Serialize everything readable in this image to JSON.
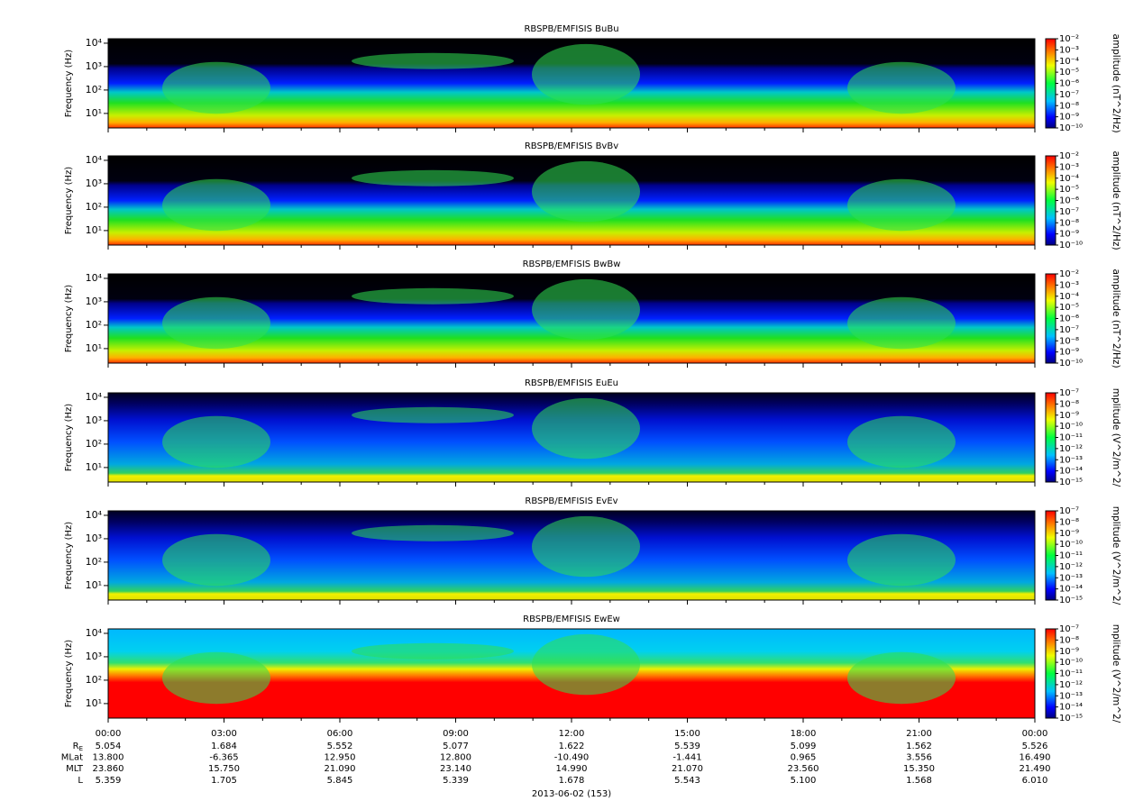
{
  "chart_data": [
    {
      "type": "heatmap",
      "title": "RBSPB/EMFISIS  BuBu",
      "ylabel": "Frequency (Hz)",
      "yscale": "log",
      "ylim": [
        2.4,
        15500
      ],
      "yticks": [
        {
          "value": 10,
          "label": "10¹"
        },
        {
          "value": 100,
          "label": "10²"
        },
        {
          "value": 1000,
          "label": "10³"
        },
        {
          "value": 10000,
          "label": "10⁴"
        }
      ],
      "colorbar": {
        "label": "amplitude (nT^2/Hz)",
        "scale": "log",
        "lim": [
          1e-10,
          0.01
        ],
        "ticks": [
          {
            "value": 0.01,
            "label": "10⁻²"
          },
          {
            "value": 0.001,
            "label": "10⁻³"
          },
          {
            "value": 0.0001,
            "label": "10⁻⁴"
          },
          {
            "value": 1e-05,
            "label": "10⁻⁵"
          },
          {
            "value": 1e-06,
            "label": "10⁻⁶"
          },
          {
            "value": 1e-07,
            "label": "10⁻⁷"
          },
          {
            "value": 1e-08,
            "label": "10⁻⁸"
          },
          {
            "value": 1e-09,
            "label": "10⁻⁹"
          },
          {
            "value": 1e-10,
            "label": "10⁻¹⁰"
          }
        ]
      }
    },
    {
      "type": "heatmap",
      "title": "RBSPB/EMFISIS  BvBv",
      "ylabel": "Frequency (Hz)",
      "yscale": "log",
      "ylim": [
        2.4,
        15500
      ],
      "yticks": [
        {
          "value": 10,
          "label": "10¹"
        },
        {
          "value": 100,
          "label": "10²"
        },
        {
          "value": 1000,
          "label": "10³"
        },
        {
          "value": 10000,
          "label": "10⁴"
        }
      ],
      "colorbar": {
        "label": "amplitude (nT^2/Hz)",
        "scale": "log",
        "lim": [
          1e-10,
          0.01
        ],
        "ticks": [
          {
            "value": 0.01,
            "label": "10⁻²"
          },
          {
            "value": 0.001,
            "label": "10⁻³"
          },
          {
            "value": 0.0001,
            "label": "10⁻⁴"
          },
          {
            "value": 1e-05,
            "label": "10⁻⁵"
          },
          {
            "value": 1e-06,
            "label": "10⁻⁶"
          },
          {
            "value": 1e-07,
            "label": "10⁻⁷"
          },
          {
            "value": 1e-08,
            "label": "10⁻⁸"
          },
          {
            "value": 1e-09,
            "label": "10⁻⁹"
          },
          {
            "value": 1e-10,
            "label": "10⁻¹⁰"
          }
        ]
      }
    },
    {
      "type": "heatmap",
      "title": "RBSPB/EMFISIS  BwBw",
      "ylabel": "Frequency (Hz)",
      "yscale": "log",
      "ylim": [
        2.4,
        15500
      ],
      "yticks": [
        {
          "value": 10,
          "label": "10¹"
        },
        {
          "value": 100,
          "label": "10²"
        },
        {
          "value": 1000,
          "label": "10³"
        },
        {
          "value": 10000,
          "label": "10⁴"
        }
      ],
      "colorbar": {
        "label": "amplitude (nT^2/Hz)",
        "scale": "log",
        "lim": [
          1e-10,
          0.01
        ],
        "ticks": [
          {
            "value": 0.01,
            "label": "10⁻²"
          },
          {
            "value": 0.001,
            "label": "10⁻³"
          },
          {
            "value": 0.0001,
            "label": "10⁻⁴"
          },
          {
            "value": 1e-05,
            "label": "10⁻⁵"
          },
          {
            "value": 1e-06,
            "label": "10⁻⁶"
          },
          {
            "value": 1e-07,
            "label": "10⁻⁷"
          },
          {
            "value": 1e-08,
            "label": "10⁻⁸"
          },
          {
            "value": 1e-09,
            "label": "10⁻⁹"
          },
          {
            "value": 1e-10,
            "label": "10⁻¹⁰"
          }
        ]
      }
    },
    {
      "type": "heatmap",
      "title": "RBSPB/EMFISIS  EuEu",
      "ylabel": "Frequency (Hz)",
      "yscale": "log",
      "ylim": [
        2.4,
        15500
      ],
      "yticks": [
        {
          "value": 10,
          "label": "10¹"
        },
        {
          "value": 100,
          "label": "10²"
        },
        {
          "value": 1000,
          "label": "10³"
        },
        {
          "value": 10000,
          "label": "10⁴"
        }
      ],
      "colorbar": {
        "label": "mplitude (V^2/m^2/",
        "scale": "log",
        "lim": [
          1e-15,
          1e-07
        ],
        "ticks": [
          {
            "value": 1e-07,
            "label": "10⁻⁷"
          },
          {
            "value": 1e-08,
            "label": "10⁻⁸"
          },
          {
            "value": 1e-09,
            "label": "10⁻⁹"
          },
          {
            "value": 1e-10,
            "label": "10⁻¹⁰"
          },
          {
            "value": 1e-11,
            "label": "10⁻¹¹"
          },
          {
            "value": 1e-12,
            "label": "10⁻¹²"
          },
          {
            "value": 1e-13,
            "label": "10⁻¹³"
          },
          {
            "value": 1e-14,
            "label": "10⁻¹⁴"
          },
          {
            "value": 1e-15,
            "label": "10⁻¹⁵"
          }
        ]
      }
    },
    {
      "type": "heatmap",
      "title": "RBSPB/EMFISIS  EvEv",
      "ylabel": "Frequency (Hz)",
      "yscale": "log",
      "ylim": [
        2.4,
        15500
      ],
      "yticks": [
        {
          "value": 10,
          "label": "10¹"
        },
        {
          "value": 100,
          "label": "10²"
        },
        {
          "value": 1000,
          "label": "10³"
        },
        {
          "value": 10000,
          "label": "10⁴"
        }
      ],
      "colorbar": {
        "label": "mplitude (V^2/m^2/",
        "scale": "log",
        "lim": [
          1e-15,
          1e-07
        ],
        "ticks": [
          {
            "value": 1e-07,
            "label": "10⁻⁷"
          },
          {
            "value": 1e-08,
            "label": "10⁻⁸"
          },
          {
            "value": 1e-09,
            "label": "10⁻⁹"
          },
          {
            "value": 1e-10,
            "label": "10⁻¹⁰"
          },
          {
            "value": 1e-11,
            "label": "10⁻¹¹"
          },
          {
            "value": 1e-12,
            "label": "10⁻¹²"
          },
          {
            "value": 1e-13,
            "label": "10⁻¹³"
          },
          {
            "value": 1e-14,
            "label": "10⁻¹⁴"
          },
          {
            "value": 1e-15,
            "label": "10⁻¹⁵"
          }
        ]
      }
    },
    {
      "type": "heatmap",
      "title": "RBSPB/EMFISIS  EwEw",
      "ylabel": "Frequency (Hz)",
      "yscale": "log",
      "ylim": [
        2.4,
        15500
      ],
      "yticks": [
        {
          "value": 10,
          "label": "10¹"
        },
        {
          "value": 100,
          "label": "10²"
        },
        {
          "value": 1000,
          "label": "10³"
        },
        {
          "value": 10000,
          "label": "10⁴"
        }
      ],
      "colorbar": {
        "label": "mplitude (V^2/m^2/",
        "scale": "log",
        "lim": [
          1e-15,
          1e-07
        ],
        "ticks": [
          {
            "value": 1e-07,
            "label": "10⁻⁷"
          },
          {
            "value": 1e-08,
            "label": "10⁻⁸"
          },
          {
            "value": 1e-09,
            "label": "10⁻⁹"
          },
          {
            "value": 1e-10,
            "label": "10⁻¹⁰"
          },
          {
            "value": 1e-11,
            "label": "10⁻¹¹"
          },
          {
            "value": 1e-12,
            "label": "10⁻¹²"
          },
          {
            "value": 1e-13,
            "label": "10⁻¹³"
          },
          {
            "value": 1e-14,
            "label": "10⁻¹⁴"
          },
          {
            "value": 1e-15,
            "label": "10⁻¹⁵"
          }
        ]
      }
    }
  ],
  "x_axis": {
    "categories": [
      "00:00",
      "03:00",
      "06:00",
      "09:00",
      "12:00",
      "15:00",
      "18:00",
      "21:00",
      "00:00"
    ],
    "date_label": "2013-06-02 (153)",
    "ephemeris": [
      {
        "name": "R",
        "subscript": "E",
        "values": [
          "5.054",
          "1.684",
          "5.552",
          "5.077",
          "1.622",
          "5.539",
          "5.099",
          "1.562",
          "5.526"
        ]
      },
      {
        "name": "MLat",
        "values": [
          "13.800",
          "-6.365",
          "12.950",
          "12.800",
          "-10.490",
          "-1.441",
          "0.965",
          "3.556",
          "16.490"
        ]
      },
      {
        "name": "MLT",
        "values": [
          "23.860",
          "15.750",
          "21.090",
          "23.140",
          "14.990",
          "21.070",
          "23.560",
          "15.350",
          "21.490"
        ]
      },
      {
        "name": "L",
        "values": [
          "5.359",
          "1.705",
          "5.845",
          "5.339",
          "1.678",
          "5.543",
          "5.100",
          "1.568",
          "6.010"
        ]
      }
    ]
  }
}
